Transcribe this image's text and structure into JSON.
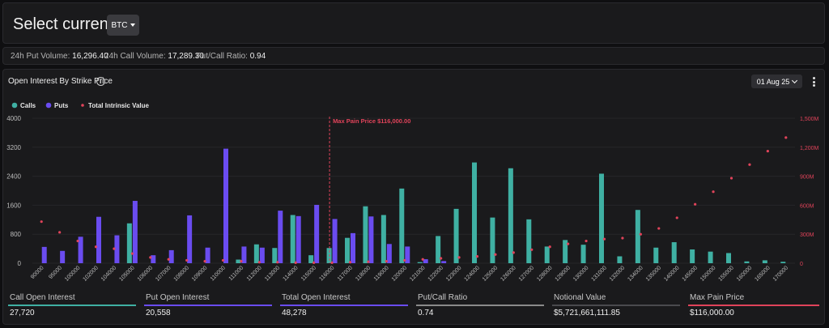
{
  "header": {
    "title": "Select currency:",
    "currency": "BTC"
  },
  "stats": [
    {
      "label": "24h Put Volume:",
      "value": "16,296.40"
    },
    {
      "label": "24h Call Volume:",
      "value": "17,289.30"
    },
    {
      "label": "Put/Call Ratio:",
      "value": "0.94"
    }
  ],
  "chart_panel": {
    "title": "Open Interest By Strike Price",
    "date": "01 Aug 25"
  },
  "colors": {
    "calls": "#3fb0a3",
    "puts": "#6a4cf0",
    "intrinsic": "#e0435a",
    "maxpain": "#e0435a"
  },
  "chart_data": {
    "type": "bar",
    "legend": {
      "position": "top-left",
      "items": [
        "Calls",
        "Puts",
        "Total Intrinsic Value"
      ]
    },
    "annotation": "Max Pain Price $116,000.00",
    "max_pain_category": "116000",
    "ylim": [
      0,
      4000
    ],
    "y_ticks": [
      "0",
      "800",
      "1600",
      "2400",
      "3200",
      "4000"
    ],
    "y2lim": [
      0,
      1500000000
    ],
    "y2_ticks": [
      "0",
      "300M",
      "600M",
      "900M",
      "1,200M",
      "1,500M"
    ],
    "categories": [
      "90000",
      "95000",
      "100000",
      "102000",
      "104000",
      "105000",
      "106000",
      "107000",
      "108000",
      "109000",
      "110000",
      "111000",
      "112000",
      "113000",
      "114000",
      "115000",
      "116000",
      "117000",
      "118000",
      "119000",
      "120000",
      "121000",
      "122000",
      "123000",
      "124000",
      "125000",
      "126000",
      "127000",
      "128000",
      "129000",
      "130000",
      "131000",
      "132000",
      "134000",
      "135000",
      "140000",
      "145000",
      "150000",
      "155000",
      "160000",
      "165000",
      "170000"
    ],
    "series": [
      {
        "name": "Calls",
        "values": [
          0,
          0,
          0,
          0,
          0,
          1100,
          0,
          0,
          0,
          0,
          0,
          100,
          520,
          420,
          1330,
          220,
          420,
          700,
          1570,
          1330,
          2060,
          30,
          750,
          1500,
          2780,
          1260,
          2620,
          1210,
          460,
          640,
          510,
          2470,
          190,
          1470,
          430,
          580,
          380,
          320,
          280,
          50,
          80,
          40
        ]
      },
      {
        "name": "Puts",
        "values": [
          450,
          340,
          730,
          1280,
          770,
          1720,
          220,
          360,
          1320,
          430,
          3160,
          460,
          430,
          1450,
          1300,
          1610,
          1220,
          830,
          1290,
          530,
          460,
          110,
          60,
          0,
          0,
          0,
          0,
          0,
          0,
          0,
          0,
          0,
          0,
          0,
          0,
          0,
          0,
          0,
          0,
          0,
          0,
          0
        ]
      },
      {
        "name": "Total Intrinsic Value",
        "values": [
          430000000,
          320000000,
          230000000,
          170000000,
          150000000,
          100000000,
          60000000,
          40000000,
          30000000,
          20000000,
          30000000,
          20000000,
          10000000,
          10000000,
          5000000,
          5000000,
          5000000,
          10000000,
          15000000,
          20000000,
          30000000,
          40000000,
          50000000,
          60000000,
          70000000,
          90000000,
          110000000,
          140000000,
          170000000,
          200000000,
          230000000,
          250000000,
          260000000,
          300000000,
          360000000,
          470000000,
          610000000,
          740000000,
          880000000,
          1020000000,
          1160000000,
          1300000000
        ]
      }
    ]
  },
  "summary": [
    {
      "label": "Call Open Interest",
      "value": "27,720",
      "color": "#3fb0a3"
    },
    {
      "label": "Put Open Interest",
      "value": "20,558",
      "color": "#6a4cf0"
    },
    {
      "label": "Total Open Interest",
      "value": "48,278",
      "color": "#6a4cf0"
    },
    {
      "label": "Put/Call Ratio",
      "value": "0.74",
      "color": "#8a8a8a"
    },
    {
      "label": "Notional Value",
      "value": "$5,721,661,111.85",
      "color": "#4a4a4e"
    },
    {
      "label": "Max Pain Price",
      "value": "$116,000.00",
      "color": "#e0435a"
    }
  ]
}
